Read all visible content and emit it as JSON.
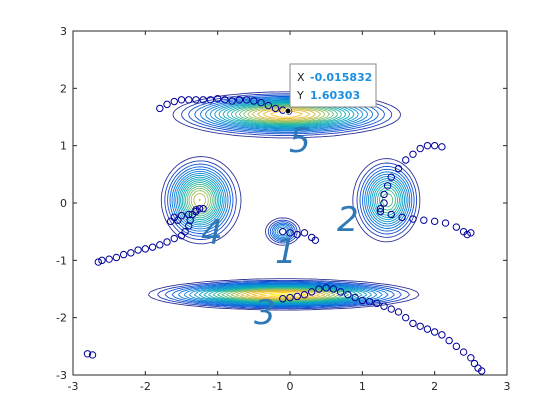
{
  "chart_data": {
    "type": "scatter",
    "xlim": [
      -3,
      3
    ],
    "ylim": [
      -3,
      3
    ],
    "xticks": [
      "-3",
      "-2",
      "-1",
      "0",
      "1",
      "2",
      "3"
    ],
    "yticks": [
      "-3",
      "-2",
      "-1",
      "0",
      "1",
      "2",
      "3"
    ],
    "grid": false,
    "contour": {
      "colormap": "parula",
      "levels": 22,
      "wells": [
        {
          "x": -1.25,
          "y": 0.05,
          "depth": 1.2,
          "sx": 0.25,
          "sy": 0.35
        },
        {
          "x": -0.1,
          "y": -1.6,
          "depth": 1.5,
          "sx": 0.9,
          "sy": 0.12
        },
        {
          "x": -0.05,
          "y": 1.55,
          "depth": 1.4,
          "sx": 0.75,
          "sy": 0.18
        },
        {
          "x": 1.35,
          "y": 0.05,
          "depth": 1.0,
          "sx": 0.22,
          "sy": 0.35
        },
        {
          "x": -0.1,
          "y": -0.5,
          "depth": 0.6,
          "sx": 0.12,
          "sy": 0.12
        }
      ]
    },
    "series": [
      {
        "color": "#000099",
        "points": [
          [
            -2.65,
            -1.03
          ],
          [
            -2.6,
            -1.0
          ],
          [
            -2.5,
            -0.98
          ],
          [
            -2.4,
            -0.95
          ],
          [
            -2.3,
            -0.9
          ],
          [
            -2.2,
            -0.87
          ],
          [
            -2.1,
            -0.82
          ],
          [
            -2.0,
            -0.8
          ],
          [
            -1.9,
            -0.77
          ],
          [
            -1.8,
            -0.73
          ],
          [
            -1.7,
            -0.68
          ],
          [
            -1.6,
            -0.62
          ],
          [
            -1.5,
            -0.57
          ],
          [
            -1.45,
            -0.5
          ],
          [
            -1.4,
            -0.4
          ],
          [
            -1.38,
            -0.3
          ],
          [
            -1.35,
            -0.2
          ],
          [
            -1.3,
            -0.12
          ],
          [
            -1.25,
            -0.1
          ],
          [
            -1.55,
            -0.3
          ],
          [
            -1.6,
            -0.25
          ],
          [
            -1.5,
            -0.22
          ],
          [
            -1.4,
            -0.2
          ],
          [
            -1.3,
            -0.15
          ],
          [
            -1.65,
            -0.32
          ],
          [
            -1.2,
            -0.1
          ]
        ]
      },
      {
        "color": "#000099",
        "points": [
          [
            -2.8,
            -2.63
          ],
          [
            -2.73,
            -2.65
          ]
        ]
      },
      {
        "color": "#000099",
        "points": [
          [
            -0.1,
            -1.67
          ],
          [
            0.0,
            -1.65
          ],
          [
            0.1,
            -1.63
          ],
          [
            0.2,
            -1.6
          ],
          [
            0.3,
            -1.55
          ],
          [
            0.4,
            -1.5
          ],
          [
            0.5,
            -1.48
          ],
          [
            0.6,
            -1.5
          ],
          [
            0.7,
            -1.55
          ],
          [
            0.8,
            -1.6
          ],
          [
            0.9,
            -1.65
          ],
          [
            1.0,
            -1.7
          ],
          [
            1.1,
            -1.72
          ],
          [
            1.2,
            -1.75
          ],
          [
            1.3,
            -1.8
          ],
          [
            1.4,
            -1.85
          ],
          [
            1.5,
            -1.9
          ],
          [
            1.6,
            -2.0
          ],
          [
            1.7,
            -2.1
          ],
          [
            1.8,
            -2.15
          ],
          [
            1.9,
            -2.2
          ],
          [
            2.0,
            -2.25
          ],
          [
            2.1,
            -2.3
          ],
          [
            2.2,
            -2.4
          ],
          [
            2.3,
            -2.5
          ],
          [
            2.4,
            -2.6
          ],
          [
            2.5,
            -2.7
          ],
          [
            2.55,
            -2.8
          ],
          [
            2.6,
            -2.88
          ],
          [
            2.65,
            -2.93
          ]
        ]
      },
      {
        "color": "#000099",
        "points": [
          [
            -1.8,
            1.65
          ],
          [
            -1.7,
            1.72
          ],
          [
            -1.6,
            1.77
          ],
          [
            -1.5,
            1.8
          ],
          [
            -1.4,
            1.8
          ],
          [
            -1.3,
            1.8
          ],
          [
            -1.2,
            1.8
          ],
          [
            -1.1,
            1.8
          ],
          [
            -1.0,
            1.82
          ],
          [
            -0.9,
            1.8
          ],
          [
            -0.8,
            1.78
          ],
          [
            -0.7,
            1.8
          ],
          [
            -0.6,
            1.8
          ],
          [
            -0.5,
            1.78
          ],
          [
            -0.4,
            1.75
          ],
          [
            -0.3,
            1.7
          ],
          [
            -0.2,
            1.65
          ],
          [
            -0.1,
            1.62
          ],
          [
            -0.02,
            1.6
          ]
        ]
      },
      {
        "color": "#000099",
        "points": [
          [
            1.25,
            -0.1
          ],
          [
            1.3,
            0.0
          ],
          [
            1.3,
            0.15
          ],
          [
            1.35,
            0.3
          ],
          [
            1.4,
            0.45
          ],
          [
            1.5,
            0.6
          ],
          [
            1.6,
            0.75
          ],
          [
            1.7,
            0.85
          ],
          [
            1.8,
            0.95
          ],
          [
            1.9,
            1.0
          ],
          [
            2.0,
            1.0
          ],
          [
            2.1,
            0.98
          ],
          [
            1.25,
            -0.15
          ],
          [
            1.4,
            -0.2
          ],
          [
            1.55,
            -0.25
          ],
          [
            1.7,
            -0.28
          ],
          [
            1.85,
            -0.3
          ],
          [
            2.0,
            -0.32
          ],
          [
            2.15,
            -0.35
          ],
          [
            2.3,
            -0.42
          ],
          [
            2.4,
            -0.5
          ],
          [
            2.45,
            -0.55
          ],
          [
            2.5,
            -0.52
          ]
        ]
      },
      {
        "color": "#000099",
        "points": [
          [
            -0.1,
            -0.5
          ],
          [
            0.0,
            -0.52
          ],
          [
            0.1,
            -0.55
          ],
          [
            0.2,
            -0.52
          ],
          [
            0.3,
            -0.6
          ],
          [
            0.35,
            -0.65
          ]
        ]
      }
    ],
    "datatip": {
      "x_label": "X",
      "x_value": "-0.015832",
      "y_label": "Y",
      "y_value": "1.60303",
      "at": [
        -0.015832,
        1.60303
      ]
    },
    "annotations": [
      "5",
      "4",
      "2",
      "1",
      "3"
    ]
  }
}
